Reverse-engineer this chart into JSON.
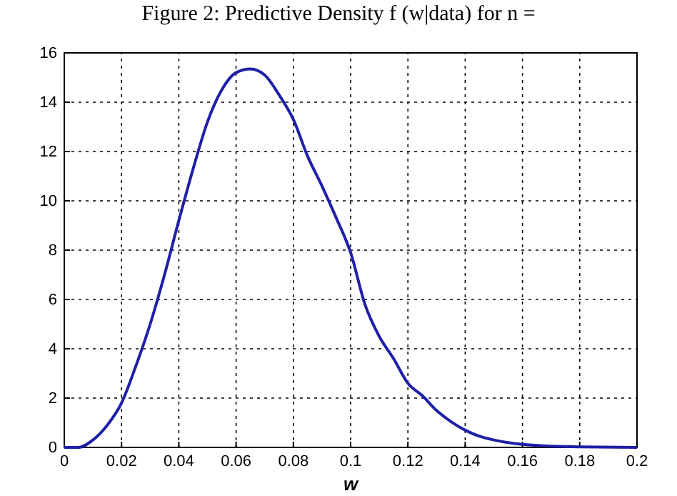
{
  "chart_data": {
    "type": "line",
    "title": "Figure 2: Predictive Density f (w|data) for n =",
    "xlabel": "w",
    "x": [
      0,
      0.005,
      0.01,
      0.015,
      0.02,
      0.025,
      0.03,
      0.035,
      0.04,
      0.045,
      0.05,
      0.055,
      0.06,
      0.065,
      0.07,
      0.075,
      0.08,
      0.085,
      0.09,
      0.095,
      0.1,
      0.105,
      0.11,
      0.115,
      0.12,
      0.125,
      0.13,
      0.135,
      0.14,
      0.145,
      0.15,
      0.16,
      0.17,
      0.18,
      0.2
    ],
    "series": [
      {
        "color": "#1f1fa8",
        "values": [
          0,
          0,
          0.3,
          0.9,
          1.8,
          3.3,
          5.0,
          7.0,
          9.2,
          11.3,
          13.2,
          14.5,
          15.2,
          15.35,
          15.1,
          14.3,
          13.3,
          11.8,
          10.6,
          9.3,
          7.9,
          5.8,
          4.5,
          3.6,
          2.6,
          2.1,
          1.5,
          1.05,
          0.7,
          0.45,
          0.3,
          0.12,
          0.05,
          0.02,
          0
        ]
      }
    ],
    "xlim": [
      0,
      0.2
    ],
    "xticks": [
      0,
      0.02,
      0.04,
      0.06,
      0.08,
      0.1,
      0.12,
      0.14,
      0.16,
      {
        "value": 0.18,
        "label": "0.18"
      },
      0.2
    ],
    "ylim": [
      0,
      16
    ],
    "yticks": [
      0,
      2,
      4,
      6,
      8,
      10,
      12,
      14,
      16
    ],
    "grid": true,
    "marker": "none",
    "line_style": "solid"
  }
}
